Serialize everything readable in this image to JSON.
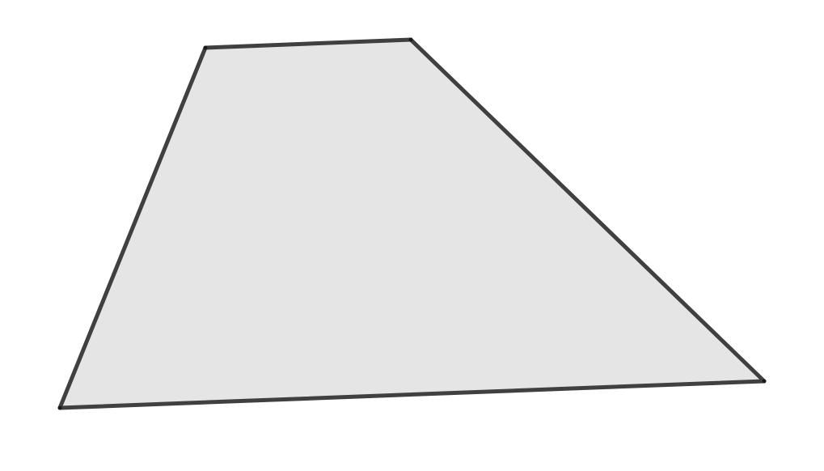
{
  "diagram": {
    "shape": "quadrilateral",
    "fill_color": "#e5e5e5",
    "stroke_color": "#404040",
    "vertex_color": "#1a1a1a",
    "vertex_count": 4,
    "labels": []
  }
}
